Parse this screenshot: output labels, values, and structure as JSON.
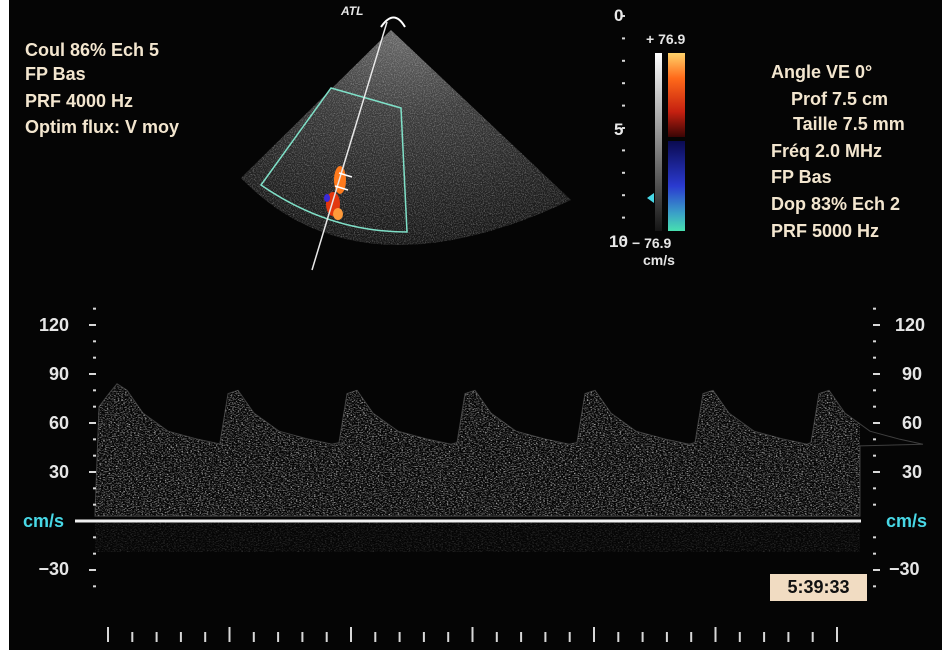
{
  "left_params": [
    "Coul 86%  Ech 5",
    "FP Bas",
    "PRF 4000  Hz",
    "Optim flux: V moy"
  ],
  "right_params": [
    "Angle VE 0°",
    "Prof 7.5  cm",
    "Taille 7.5  mm",
    "Fréq 2.0  MHz",
    "FP Bas",
    "Dop 83%  Ech 2",
    "PRF 5000  Hz"
  ],
  "probe_label": "ATL",
  "depth_scale": {
    "top": "0",
    "mid": "5",
    "bottom": "10"
  },
  "color_bar": {
    "max": "+ 76.9",
    "min": "− 76.9",
    "unit": "cm/s"
  },
  "doppler_axis_left": [
    "120",
    "90",
    "60",
    "30",
    "−30"
  ],
  "doppler_axis_right": [
    "120",
    "90",
    "60",
    "30",
    "−30"
  ],
  "velocity_unit": "cm/s",
  "timestamp": "5:39:33",
  "colors": {
    "text": "#f3e6cf",
    "unit": "#48d8e6",
    "roi_box": "#7fe0c8"
  }
}
